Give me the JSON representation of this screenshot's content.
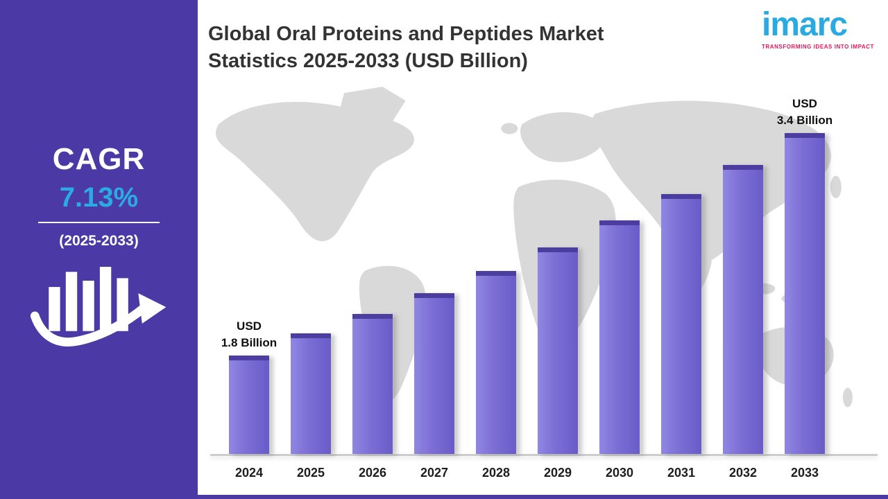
{
  "sidebar": {
    "cagr_label": "CAGR",
    "cagr_value": "7.13%",
    "period": "(2025-2033)",
    "bg_color": "#4b3aa5",
    "accent_color": "#2babe3"
  },
  "header": {
    "title_line1": "Global Oral Proteins and Peptides Market",
    "title_line2": "Statistics 2025-2033 (USD Billion)"
  },
  "logo": {
    "name": "imarc",
    "tagline": "TRANSFORMING IDEAS INTO IMPACT",
    "brand_color": "#29abe2",
    "tagline_color": "#e0185c"
  },
  "chart_data": {
    "type": "bar",
    "title": "Global Oral Proteins and Peptides Market Statistics 2025-2033 (USD Billion)",
    "unit": "USD Billion",
    "categories": [
      "2024",
      "2025",
      "2026",
      "2027",
      "2028",
      "2029",
      "2030",
      "2031",
      "2032",
      "2033"
    ],
    "values": [
      1.8,
      1.96,
      2.1,
      2.25,
      2.41,
      2.58,
      2.77,
      2.96,
      3.17,
      3.4
    ],
    "ylim": [
      0,
      3.6
    ],
    "grid": false,
    "legend": false,
    "bar_color": "#7b6ed5",
    "bar_cap_color": "#4c3da0",
    "annotations": {
      "first": {
        "line1": "USD",
        "line2": "1.8 Billion"
      },
      "last": {
        "line1": "USD",
        "line2": "3.4 Billion"
      }
    }
  }
}
